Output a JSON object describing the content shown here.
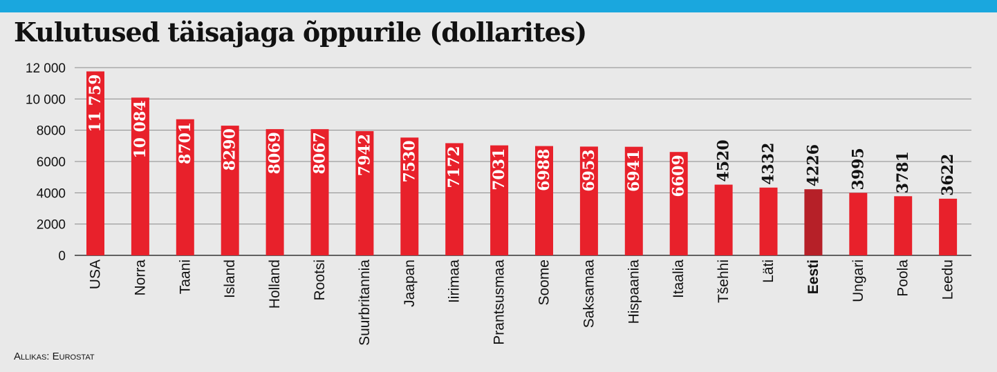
{
  "header": {
    "title": "Kulutused täisajaga õppurile (dollarites)"
  },
  "footer": {
    "source": "Allikas: Eurostat"
  },
  "colors": {
    "accent_bar": "#1aa7de",
    "bar": "#e8212b",
    "highlight_bar": "#b62028",
    "background": "#e9e9e9"
  },
  "chart_data": {
    "type": "bar",
    "title": "Kulutused täisajaga õppurile (dollarites)",
    "xlabel": "",
    "ylabel": "",
    "ylim": [
      0,
      12000
    ],
    "yticks": [
      0,
      2000,
      4000,
      6000,
      8000,
      10000,
      12000
    ],
    "ytick_labels": [
      "0",
      "2000",
      "4000",
      "6000",
      "8000",
      "10 000",
      "12 000"
    ],
    "grid": true,
    "categories": [
      "USA",
      "Norra",
      "Taani",
      "Island",
      "Holland",
      "Rootsi",
      "Suurbritannia",
      "Jaapan",
      "Iirimaa",
      "Prantsusmaa",
      "Soome",
      "Saksamaa",
      "Hispaania",
      "Itaalia",
      "Tšehhi",
      "Läti",
      "Eesti",
      "Ungari",
      "Poola",
      "Leedu"
    ],
    "values": [
      11759,
      10084,
      8701,
      8290,
      8069,
      8067,
      7942,
      7530,
      7172,
      7031,
      6988,
      6953,
      6941,
      6609,
      4520,
      4332,
      4226,
      3995,
      3781,
      3622
    ],
    "value_labels": [
      "11 759",
      "10 084",
      "8701",
      "8290",
      "8069",
      "8067",
      "7942",
      "7530",
      "7172",
      "7031",
      "6988",
      "6953",
      "6941",
      "6609",
      "4520",
      "4332",
      "4226",
      "3995",
      "3781",
      "3622"
    ],
    "highlight": "Eesti"
  }
}
